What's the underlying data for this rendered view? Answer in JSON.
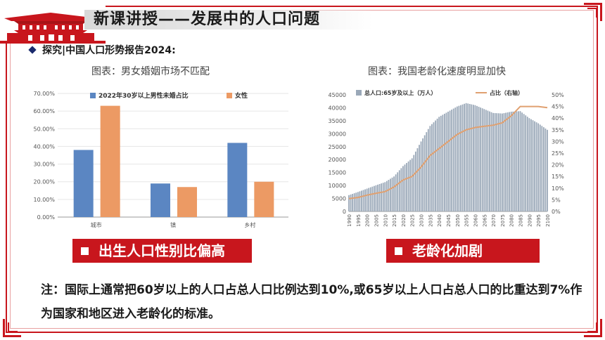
{
  "header": {
    "title": "新课讲授——发展中的人口问题",
    "subtitle": "探究|中国人口形势报告2024:"
  },
  "colors": {
    "accent_red": "#c8161d",
    "bar_blue": "#5b86c2",
    "bar_orange": "#ec9a64",
    "bar_gray_blue": "#9aa8b8",
    "line_orange": "#e0a070"
  },
  "left_chart": {
    "caption": "图表：男女婚姻市场不匹配",
    "highlight": "出生人口性别比偏高"
  },
  "right_chart": {
    "caption": "图表：我国老龄化速度明显加快",
    "highlight": "老龄化加剧"
  },
  "note": {
    "text": "注：国际上通常把60岁以上的人口占总人口比例达到10%,或65岁以上人口占总人口的比重达到7%作为国家和地区进入老龄化的标准。"
  },
  "chart_data": [
    {
      "type": "bar",
      "categories": [
        "城市",
        "镇",
        "乡村"
      ],
      "series": [
        {
          "name": "2022年30岁以上男性未婚占比",
          "values": [
            38.0,
            19.0,
            42.0
          ]
        },
        {
          "name": "女性",
          "values": [
            63.0,
            17.0,
            20.0
          ]
        }
      ],
      "ylim": [
        0,
        70
      ],
      "yticks": [
        "0.00%",
        "10.00%",
        "20.00%",
        "30.00%",
        "40.00%",
        "50.00%",
        "60.00%",
        "70.00%"
      ],
      "legend": "top"
    },
    {
      "type": "bar",
      "x_range": [
        1990,
        2100
      ],
      "xticks": [
        "1990",
        "1995",
        "2000",
        "2005",
        "2010",
        "2015",
        "2020",
        "2025",
        "2030",
        "2035",
        "2040",
        "2045",
        "2050",
        "2055",
        "2060",
        "2065",
        "2070",
        "2075",
        "2080",
        "2085",
        "2090",
        "2095",
        "2100"
      ],
      "series": [
        {
          "name": "总人口:65岁及以上（万人）",
          "axis": "left",
          "x": [
            1990,
            1995,
            2000,
            2005,
            2010,
            2015,
            2020,
            2025,
            2030,
            2035,
            2040,
            2045,
            2050,
            2055,
            2060,
            2065,
            2070,
            2075,
            2080,
            2085,
            2090,
            2095,
            2100
          ],
          "values": [
            6300,
            7500,
            8800,
            10100,
            11300,
            13500,
            17500,
            20500,
            27000,
            33000,
            36500,
            38500,
            40500,
            41800,
            41000,
            39500,
            38000,
            37800,
            38500,
            38700,
            36000,
            34000,
            31500
          ]
        },
        {
          "name": "占比（右轴）",
          "type": "line",
          "axis": "right",
          "x": [
            1990,
            1995,
            2000,
            2005,
            2010,
            2015,
            2020,
            2025,
            2030,
            2035,
            2040,
            2045,
            2050,
            2055,
            2060,
            2065,
            2070,
            2075,
            2080,
            2085,
            2090,
            2095,
            2100
          ],
          "values": [
            5.5,
            6.0,
            7.0,
            7.8,
            8.5,
            10.5,
            13.5,
            15.0,
            19.0,
            24.0,
            27.0,
            30.0,
            33.0,
            35.0,
            36.0,
            36.5,
            37.0,
            38.0,
            41.0,
            45.0,
            45.0,
            45.0,
            44.5
          ]
        }
      ],
      "y_left_ticks": [
        "0",
        "5000",
        "10000",
        "15000",
        "20000",
        "25000",
        "30000",
        "35000",
        "40000",
        "45000"
      ],
      "y_right_ticks": [
        "0%",
        "5%",
        "10%",
        "15%",
        "20%",
        "25%",
        "30%",
        "35%",
        "40%",
        "45%",
        "50%"
      ],
      "ylim_left": [
        0,
        45000
      ],
      "ylim_right": [
        0,
        50
      ],
      "legend": "top"
    }
  ]
}
